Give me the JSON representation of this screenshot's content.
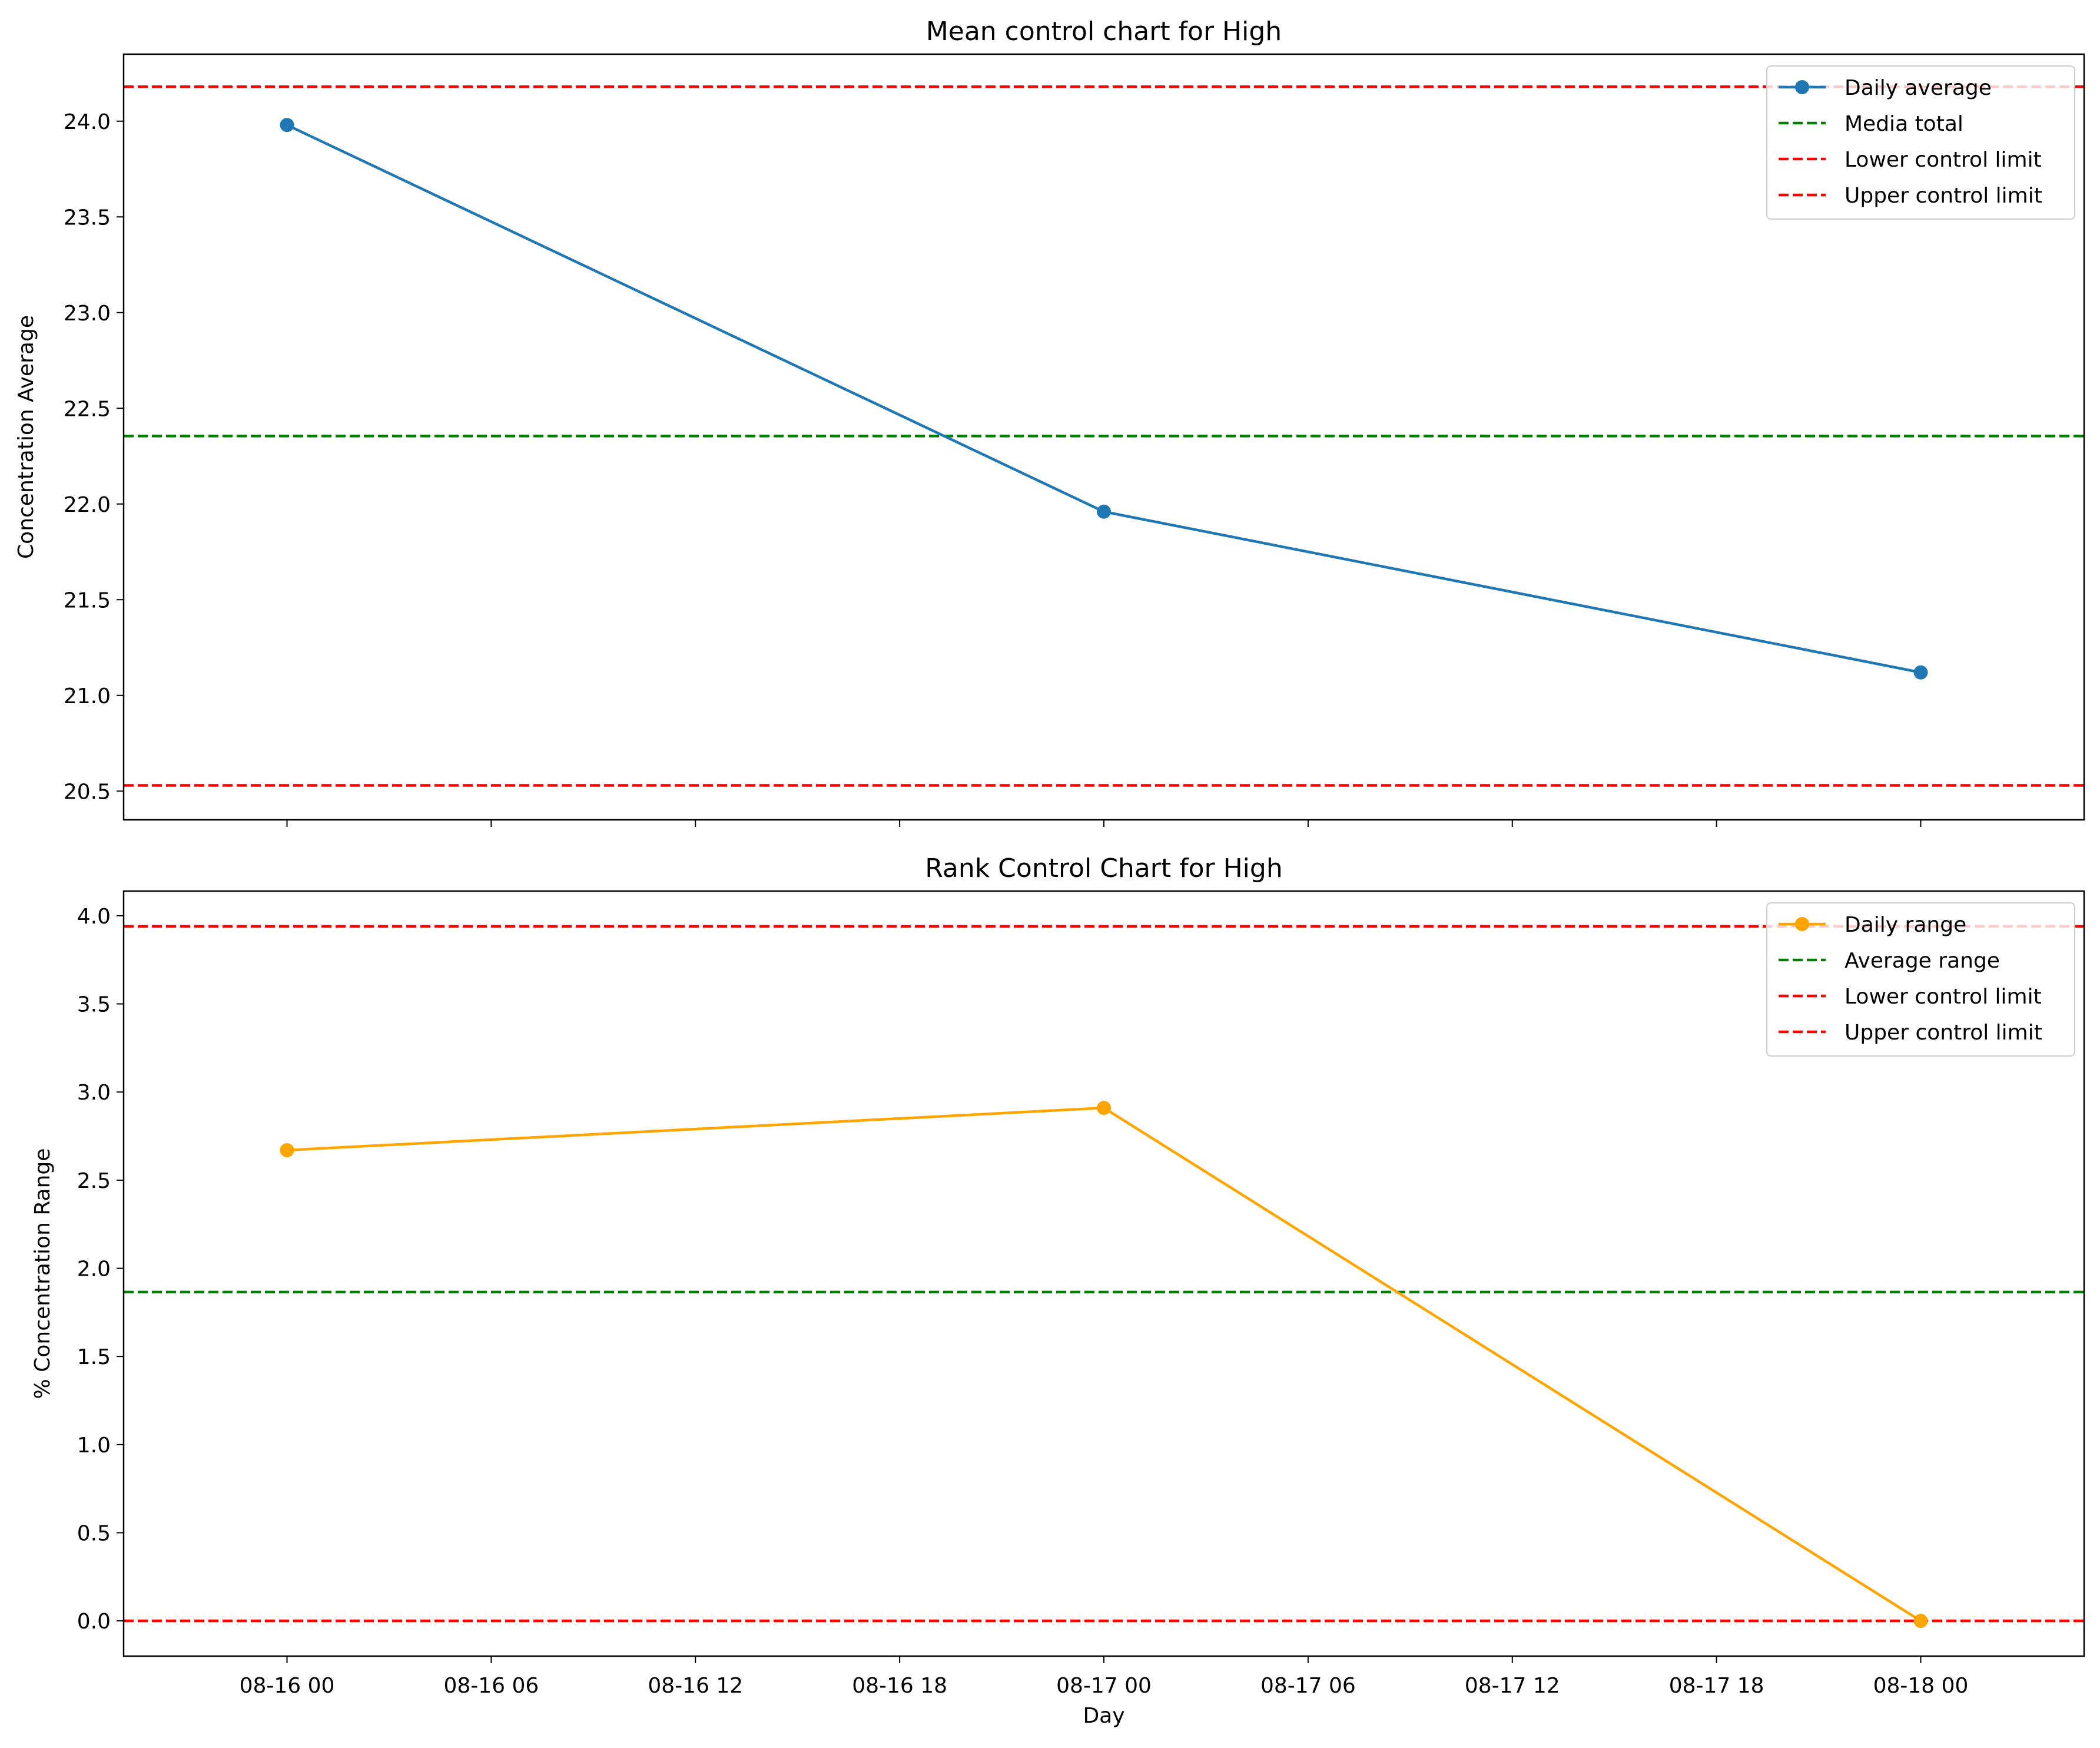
{
  "chart_data": [
    {
      "type": "line",
      "title": "Mean control chart for High",
      "xlabel": "",
      "ylabel": "Concentration Average",
      "x": [
        "2024-08-16 00:00",
        "2024-08-17 00:00",
        "2024-08-18 00:00"
      ],
      "xtick_labels": [
        "08-16 00",
        "08-16 06",
        "08-16 12",
        "08-16 18",
        "08-17 00",
        "08-17 06",
        "08-17 12",
        "08-17 18",
        "08-18 00"
      ],
      "ylim": [
        20.35,
        24.35
      ],
      "yticks": [
        20.5,
        21.0,
        21.5,
        22.0,
        22.5,
        23.0,
        23.5,
        24.0
      ],
      "ytick_labels": [
        "20.5",
        "21.0",
        "21.5",
        "22.0",
        "22.5",
        "23.0",
        "23.5",
        "24.0"
      ],
      "series": [
        {
          "name": "Daily average",
          "values": [
            23.98,
            21.96,
            21.12
          ],
          "color": "#1f77b4",
          "style": "line-marker"
        }
      ],
      "hlines": [
        {
          "name": "Media total",
          "value": 22.355,
          "color": "#008000"
        },
        {
          "name": "Lower control limit",
          "value": 20.53,
          "color": "#ff0000"
        },
        {
          "name": "Upper control limit",
          "value": 24.18,
          "color": "#ff0000"
        }
      ],
      "legend": "top-right",
      "grid": false
    },
    {
      "type": "line",
      "title": "Rank Control Chart for High",
      "xlabel": "Day",
      "ylabel": "% Concentration Range",
      "x": [
        "2024-08-16 00:00",
        "2024-08-17 00:00",
        "2024-08-18 00:00"
      ],
      "xtick_labels": [
        "08-16 00",
        "08-16 06",
        "08-16 12",
        "08-16 18",
        "08-17 00",
        "08-17 06",
        "08-17 12",
        "08-17 18",
        "08-18 00"
      ],
      "ylim": [
        -0.2,
        4.14
      ],
      "yticks": [
        0.0,
        0.5,
        1.0,
        1.5,
        2.0,
        2.5,
        3.0,
        3.5,
        4.0
      ],
      "ytick_labels": [
        "0.0",
        "0.5",
        "1.0",
        "1.5",
        "2.0",
        "2.5",
        "3.0",
        "3.5",
        "4.0"
      ],
      "series": [
        {
          "name": "Daily range",
          "values": [
            2.67,
            2.91,
            0.0
          ],
          "color": "#ffa500",
          "style": "line-marker"
        }
      ],
      "hlines": [
        {
          "name": "Average range",
          "value": 1.865,
          "color": "#008000"
        },
        {
          "name": "Lower control limit",
          "value": 0.0,
          "color": "#ff0000"
        },
        {
          "name": "Upper control limit",
          "value": 3.94,
          "color": "#ff0000"
        }
      ],
      "legend": "top-right",
      "grid": false
    }
  ]
}
